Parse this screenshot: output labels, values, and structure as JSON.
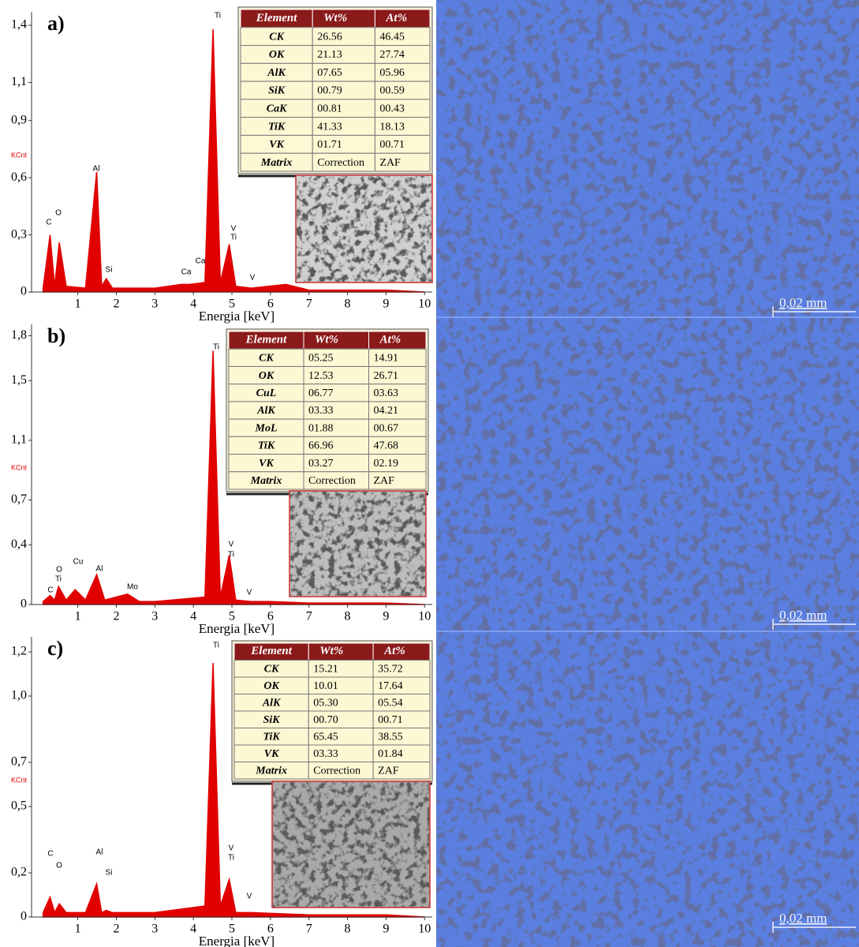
{
  "chart_data": [
    {
      "type": "area",
      "title": "a)",
      "x_label": "Energia [keV]",
      "y_label": "KCnt",
      "color": "#e00000",
      "xlim": [
        -0.2,
        10.2
      ],
      "xticks": [
        1,
        2,
        3,
        4,
        5,
        6,
        7,
        8,
        9,
        10
      ],
      "ylim": [
        0,
        1.45
      ],
      "yticks": [
        0,
        {
          "value": 0.3,
          "label": "0,3"
        },
        {
          "value": 0.6,
          "label": "0,6"
        },
        {
          "value": 0.9,
          "label": "0,9"
        },
        {
          "value": 1.1,
          "label": "1,1"
        },
        {
          "value": 1.4,
          "label": "1,4"
        }
      ],
      "x": [
        0.1,
        0.28,
        0.4,
        0.52,
        0.7,
        1.2,
        1.49,
        1.62,
        1.74,
        1.9,
        3,
        3.69,
        3.9,
        4.3,
        4.51,
        4.7,
        4.93,
        5.1,
        5.5,
        6.4,
        7,
        8,
        9,
        10
      ],
      "values": [
        0.02,
        0.3,
        0.03,
        0.26,
        0.03,
        0.02,
        0.63,
        0.03,
        0.07,
        0.02,
        0.02,
        0.04,
        0.04,
        0.05,
        1.38,
        0.05,
        0.25,
        0.03,
        0.02,
        0.04,
        0.01,
        0.01,
        0.01,
        0
      ],
      "annotations": [
        "C",
        "O",
        "Al",
        "Si",
        "Ca",
        "Ca",
        "Ti",
        "V",
        "Ti",
        "V"
      ],
      "table": {
        "columns": [
          "Element",
          "Wt%",
          "At%"
        ],
        "rows": [
          [
            "CK",
            "26.56",
            "46.45"
          ],
          [
            "OK",
            "21.13",
            "27.74"
          ],
          [
            "AlK",
            "07.65",
            "05.96"
          ],
          [
            "SiK",
            "00.79",
            "00.59"
          ],
          [
            "CaK",
            "00.81",
            "00.43"
          ],
          [
            "TiK",
            "41.33",
            "18.13"
          ],
          [
            "VK",
            "01.71",
            "00.71"
          ],
          [
            "Matrix",
            "Correction",
            "ZAF"
          ]
        ]
      },
      "scale_label": "0,02 mm"
    },
    {
      "type": "area",
      "title": "b)",
      "x_label": "Energia [keV]",
      "y_label": "KCnt",
      "color": "#e00000",
      "xlim": [
        -0.2,
        10.2
      ],
      "xticks": [
        1,
        2,
        3,
        4,
        5,
        6,
        7,
        8,
        9,
        10
      ],
      "ylim": [
        0,
        1.85
      ],
      "yticks": [
        0,
        {
          "value": 0.4,
          "label": "0,4"
        },
        {
          "value": 0.7,
          "label": "0,7"
        },
        {
          "value": 1.1,
          "label": "1,1"
        },
        {
          "value": 1.5,
          "label": "1,5"
        },
        {
          "value": 1.8,
          "label": "1,8"
        }
      ],
      "x": [
        0.1,
        0.28,
        0.4,
        0.5,
        0.7,
        0.93,
        1.2,
        1.49,
        1.7,
        2.29,
        2.6,
        3,
        4.3,
        4.51,
        4.7,
        4.93,
        5.1,
        5.5,
        6,
        7,
        8,
        9,
        10
      ],
      "values": [
        0.02,
        0.06,
        0.03,
        0.12,
        0.03,
        0.1,
        0.03,
        0.2,
        0.03,
        0.07,
        0.02,
        0.02,
        0.05,
        1.7,
        0.05,
        0.33,
        0.03,
        0.02,
        0.02,
        0.01,
        0.01,
        0.01,
        0
      ],
      "annotations": [
        "Ti",
        "C",
        "Ti",
        "O",
        "Cu",
        "Al",
        "Mo",
        "V",
        "Ti",
        "V"
      ],
      "table": {
        "columns": [
          "Element",
          "Wt%",
          "At%"
        ],
        "rows": [
          [
            "CK",
            "05.25",
            "14.91"
          ],
          [
            "OK",
            "12.53",
            "26.71"
          ],
          [
            "CuL",
            "06.77",
            "03.63"
          ],
          [
            "AlK",
            "03.33",
            "04.21"
          ],
          [
            "MoL",
            "01.88",
            "00.67"
          ],
          [
            "TiK",
            "66.96",
            "47.68"
          ],
          [
            "VK",
            "03.27",
            "02.19"
          ],
          [
            "Matrix",
            "Correction",
            "ZAF"
          ]
        ]
      },
      "scale_label": "0,02 mm"
    },
    {
      "type": "area",
      "title": "c)",
      "x_label": "Energia [keV]",
      "y_label": "KCnt",
      "color": "#e00000",
      "xlim": [
        -0.2,
        10.2
      ],
      "xticks": [
        1,
        2,
        3,
        4,
        5,
        6,
        7,
        8,
        9,
        10
      ],
      "ylim": [
        0,
        1.25
      ],
      "yticks": [
        0,
        {
          "value": 0.2,
          "label": "0,2"
        },
        {
          "value": 0.5,
          "label": "0,5"
        },
        {
          "value": 0.7,
          "label": "0,7"
        },
        {
          "value": 1.0,
          "label": "1,0"
        },
        {
          "value": 1.2,
          "label": "1,2"
        }
      ],
      "x": [
        0.1,
        0.28,
        0.4,
        0.52,
        0.7,
        1.2,
        1.49,
        1.62,
        1.74,
        1.9,
        3,
        4.3,
        4.51,
        4.7,
        4.93,
        5.1,
        5.5,
        7,
        8,
        9,
        10
      ],
      "values": [
        0.02,
        0.09,
        0.02,
        0.06,
        0.02,
        0.02,
        0.15,
        0.02,
        0.03,
        0.02,
        0.02,
        0.05,
        1.15,
        0.05,
        0.17,
        0.02,
        0.02,
        0.01,
        0.01,
        0.01,
        0
      ],
      "annotations": [
        "Ti",
        "C",
        "O",
        "Al",
        "Si",
        "V",
        "Ti",
        "V"
      ],
      "table": {
        "columns": [
          "Element",
          "Wt%",
          "At%"
        ],
        "rows": [
          [
            "CK",
            "15.21",
            "35.72"
          ],
          [
            "OK",
            "10.01",
            "17.64"
          ],
          [
            "AlK",
            "05.30",
            "05.54"
          ],
          [
            "SiK",
            "00.70",
            "00.71"
          ],
          [
            "TiK",
            "65.45",
            "38.55"
          ],
          [
            "VK",
            "03.33",
            "01.84"
          ],
          [
            "Matrix",
            "Correction",
            "ZAF"
          ]
        ]
      },
      "scale_label": "0,02 mm"
    }
  ]
}
